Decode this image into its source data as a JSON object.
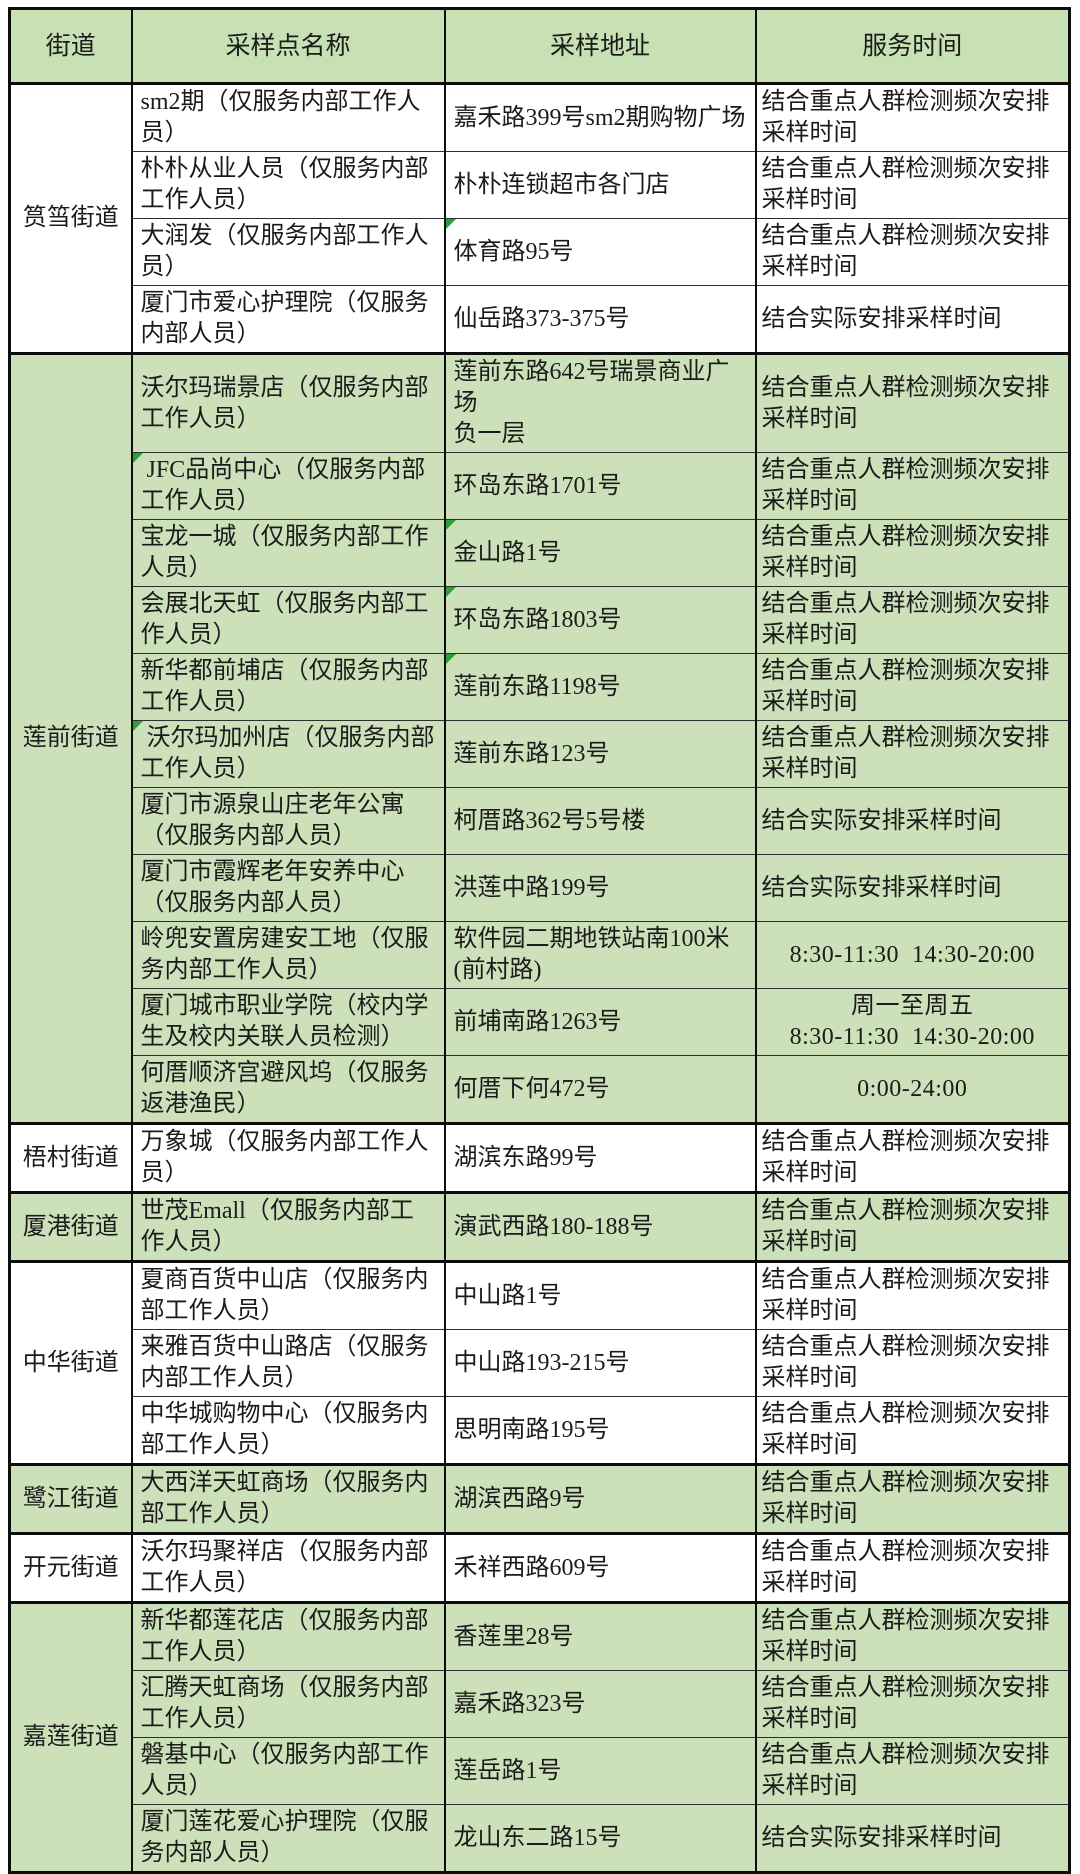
{
  "table": {
    "colors": {
      "header_bg": "#c7e1b4",
      "green_row_bg": "#cce0ba",
      "border": "#0d0d0d",
      "text": "#1b1b1b",
      "comment_marker_green": "#2e9e36"
    },
    "headers": {
      "street": "街道",
      "site": "采样点名称",
      "address": "采样地址",
      "service": "服务时间"
    },
    "groups": [
      {
        "street": "筼筜街道",
        "shade": "white",
        "rows": [
          {
            "name": "sm2期（仅服务内部工作人\n员）",
            "address": "嘉禾路399号sm2期购物广场",
            "service": "结合重点人群检测频次安排\n采样时间",
            "service_align": "left",
            "marker": ""
          },
          {
            "name": "朴朴从业人员（仅服务内部\n工作人员）",
            "address": "朴朴连锁超市各门店",
            "service": "结合重点人群检测频次安排\n采样时间",
            "service_align": "left",
            "marker": ""
          },
          {
            "name": "大润发（仅服务内部工作人\n员）",
            "address": "体育路95号",
            "service": "结合重点人群检测频次安排\n采样时间",
            "service_align": "left",
            "marker": "address"
          },
          {
            "name": "厦门市爱心护理院（仅服务\n内部人员）",
            "address": "仙岳路373-375号",
            "service": "结合实际安排采样时间",
            "service_align": "left",
            "marker": ""
          }
        ]
      },
      {
        "street": "莲前街道",
        "shade": "green",
        "rows": [
          {
            "name": "沃尔玛瑞景店（仅服务内部\n工作人员）",
            "address": "莲前东路642号瑞景商业广场\n负一层",
            "service": "结合重点人群检测频次安排\n采样时间",
            "service_align": "left",
            "marker": ""
          },
          {
            "name": " JFC品尚中心（仅服务内部\n工作人员）",
            "address": "环岛东路1701号",
            "service": "结合重点人群检测频次安排\n采样时间",
            "service_align": "left",
            "marker": "name"
          },
          {
            "name": "宝龙一城（仅服务内部工作\n人员）",
            "address": "金山路1号",
            "service": "结合重点人群检测频次安排\n采样时间",
            "service_align": "left",
            "marker": "address"
          },
          {
            "name": "会展北天虹（仅服务内部工\n作人员）",
            "address": "环岛东路1803号",
            "service": "结合重点人群检测频次安排\n采样时间",
            "service_align": "left",
            "marker": "address"
          },
          {
            "name": "新华都前埔店（仅服务内部\n工作人员）",
            "address": "莲前东路1198号",
            "service": "结合重点人群检测频次安排\n采样时间",
            "service_align": "left",
            "marker": "address"
          },
          {
            "name": " 沃尔玛加州店（仅服务内部\n工作人员）",
            "address": "莲前东路123号",
            "service": "结合重点人群检测频次安排\n采样时间",
            "service_align": "left",
            "marker": "name"
          },
          {
            "name": "厦门市源泉山庄老年公寓\n（仅服务内部人员）",
            "address": "柯厝路362号5号楼",
            "service": "结合实际安排采样时间",
            "service_align": "left",
            "marker": ""
          },
          {
            "name": "厦门市霞辉老年安养中心\n（仅服务内部人员）",
            "address": "洪莲中路199号",
            "service": "结合实际安排采样时间",
            "service_align": "left",
            "marker": ""
          },
          {
            "name": "岭兜安置房建安工地（仅服\n务内部工作人员）",
            "address": "软件园二期地铁站南100米\n(前村路)",
            "service": "8:30-11:30  14:30-20:00",
            "service_align": "center",
            "marker": ""
          },
          {
            "name": "厦门城市职业学院（校内学\n生及校内关联人员检测）",
            "address": "前埔南路1263号",
            "service": "周一至周五\n8:30-11:30  14:30-20:00",
            "service_align": "center",
            "marker": ""
          },
          {
            "name": "何厝顺济宫避风坞（仅服务\n返港渔民）",
            "address": "何厝下何472号",
            "service": "0:00-24:00",
            "service_align": "center",
            "marker": ""
          }
        ]
      },
      {
        "street": "梧村街道",
        "shade": "white",
        "rows": [
          {
            "name": "万象城（仅服务内部工作人\n员）",
            "address": "湖滨东路99号",
            "service": "结合重点人群检测频次安排\n采样时间",
            "service_align": "left",
            "marker": ""
          }
        ]
      },
      {
        "street": "厦港街道",
        "shade": "green",
        "rows": [
          {
            "name": "世茂Emall（仅服务内部工\n作人员）",
            "address": "演武西路180-188号",
            "service": "结合重点人群检测频次安排\n采样时间",
            "service_align": "left",
            "marker": ""
          }
        ]
      },
      {
        "street": "中华街道",
        "shade": "white",
        "rows": [
          {
            "name": "夏商百货中山店（仅服务内\n部工作人员）",
            "address": "中山路1号",
            "service": "结合重点人群检测频次安排\n采样时间",
            "service_align": "left",
            "marker": ""
          },
          {
            "name": "来雅百货中山路店（仅服务\n内部工作人员）",
            "address": "中山路193-215号",
            "service": "结合重点人群检测频次安排\n采样时间",
            "service_align": "left",
            "marker": ""
          },
          {
            "name": "中华城购物中心（仅服务内\n部工作人员）",
            "address": "思明南路195号",
            "service": "结合重点人群检测频次安排\n采样时间",
            "service_align": "left",
            "marker": ""
          }
        ]
      },
      {
        "street": "鹭江街道",
        "shade": "green",
        "rows": [
          {
            "name": "大西洋天虹商场（仅服务内\n部工作人员）",
            "address": "湖滨西路9号",
            "service": "结合重点人群检测频次安排\n采样时间",
            "service_align": "left",
            "marker": ""
          }
        ]
      },
      {
        "street": "开元街道",
        "shade": "white",
        "rows": [
          {
            "name": "沃尔玛聚祥店（仅服务内部\n工作人员）",
            "address": "禾祥西路609号",
            "service": "结合重点人群检测频次安排\n采样时间",
            "service_align": "left",
            "marker": ""
          }
        ]
      },
      {
        "street": "嘉莲街道",
        "shade": "green",
        "rows": [
          {
            "name": "新华都莲花店（仅服务内部\n工作人员）",
            "address": "香莲里28号",
            "service": "结合重点人群检测频次安排\n采样时间",
            "service_align": "left",
            "marker": ""
          },
          {
            "name": "汇腾天虹商场（仅服务内部\n工作人员）",
            "address": "嘉禾路323号",
            "service": "结合重点人群检测频次安排\n采样时间",
            "service_align": "left",
            "marker": ""
          },
          {
            "name": "磐基中心（仅服务内部工作\n人员）",
            "address": "莲岳路1号",
            "service": "结合重点人群检测频次安排\n采样时间",
            "service_align": "left",
            "marker": ""
          },
          {
            "name": "厦门莲花爱心护理院（仅服\n务内部人员）",
            "address": "龙山东二路15号",
            "service": "结合实际安排采样时间",
            "service_align": "left",
            "marker": ""
          }
        ]
      }
    ]
  }
}
